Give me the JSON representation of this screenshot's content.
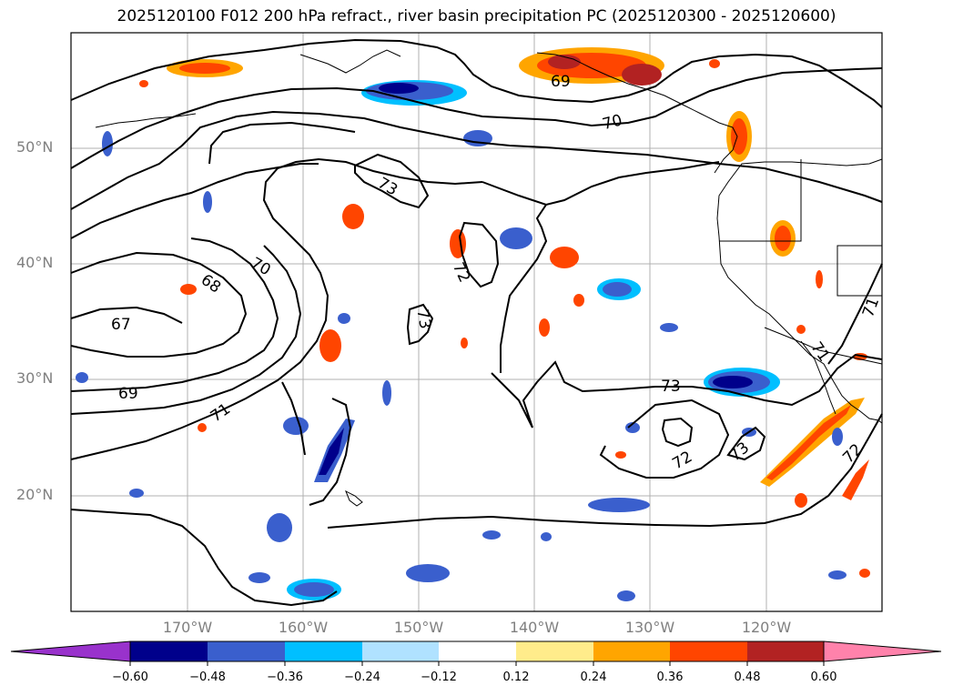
{
  "title": "2025120100 F012 200 hPa refract., river basin precipitation PC (2025120300 - 2025120600)",
  "lat_labels": [
    "50°N",
    "40°N",
    "30°N",
    "20°N"
  ],
  "lon_labels": [
    "170°W",
    "160°W",
    "150°W",
    "140°W",
    "130°W",
    "120°W"
  ],
  "contour_labels": [
    "67",
    "68",
    "69",
    "70",
    "71",
    "72",
    "73",
    "73",
    "73",
    "73",
    "70",
    "69",
    "72",
    "72",
    "71",
    "71"
  ],
  "colorbar": {
    "ticks": [
      "−0.60",
      "−0.48",
      "−0.36",
      "−0.24",
      "−0.12",
      "0.12",
      "0.24",
      "0.36",
      "0.48",
      "0.60"
    ],
    "colors": [
      "#9932CC",
      "#00008B",
      "#3A5FCD",
      "#00BFFF",
      "#B0E2FF",
      "#FFFFFF",
      "#FFEC8B",
      "#FFA500",
      "#FF4500",
      "#B22222",
      "#FF82AB"
    ]
  },
  "chart_data": {
    "type": "map",
    "title": "2025120100 F012 200 hPa refract., river basin precipitation PC (2025120300 - 2025120600)",
    "lon_range": [
      -180,
      -110
    ],
    "lat_range": [
      10,
      60
    ],
    "contour_levels": [
      67,
      68,
      69,
      70,
      71,
      72,
      73
    ],
    "colorbar_range": [
      -0.6,
      0.6
    ]
  }
}
